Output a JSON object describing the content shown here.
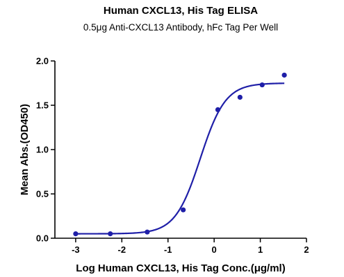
{
  "chart_data": {
    "type": "scatter",
    "title": "Human CXCL13, His Tag ELISA",
    "subtitle": "0.5μg Anti-CXCL13 Antibody, hFc Tag Per Well",
    "xlabel": "Log Human CXCL13, His Tag Conc.(μg/ml)",
    "ylabel": "Mean Abs.(OD450)",
    "xlim": [
      -3.45,
      2.0
    ],
    "ylim": [
      0.0,
      2.0
    ],
    "x_ticks": [
      -3,
      -2,
      -1,
      0,
      1,
      2
    ],
    "x_tick_labels": [
      "-3",
      "-2",
      "-1",
      "0",
      "1",
      "2"
    ],
    "y_ticks": [
      0.0,
      0.5,
      1.0,
      1.5,
      2.0
    ],
    "y_tick_labels": [
      "0.0",
      "0.5",
      "1.0",
      "1.5",
      "2.0"
    ],
    "grid": false,
    "colors": {
      "series": "#1f1fa8",
      "axis": "#000000"
    },
    "series": [
      {
        "x": [
          -3.0,
          -2.25,
          -1.45,
          -0.67,
          0.08,
          0.56,
          1.04,
          1.52
        ],
        "y": [
          0.05,
          0.05,
          0.07,
          0.32,
          1.45,
          1.59,
          1.73,
          1.84
        ],
        "fit": {
          "model": "4PL",
          "bottom": 0.05,
          "top": 1.75,
          "logEC50": -0.3,
          "hill": 1.6
        }
      }
    ]
  }
}
